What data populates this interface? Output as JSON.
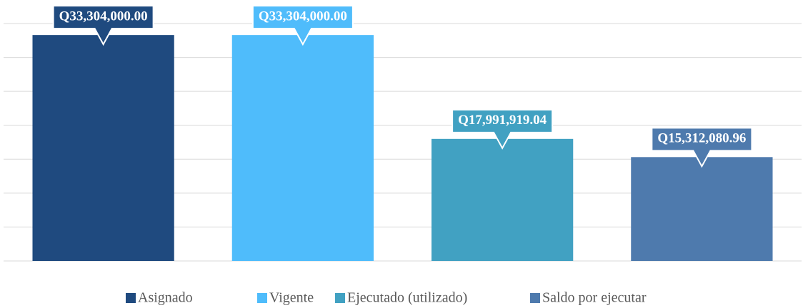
{
  "chart_data": {
    "type": "bar",
    "series": [
      {
        "name": "Asignado",
        "color": "#1f4a7f",
        "values": [
          33304000
        ],
        "value_labels": [
          "Q33,304,000.00"
        ]
      },
      {
        "name": "Vigente",
        "color": "#4fbcfb",
        "values": [
          33304000
        ],
        "value_labels": [
          "Q33,304,000.00"
        ]
      },
      {
        "name": "Ejecutado (utilizado)",
        "color": "#41a1c2",
        "values": [
          17991919.04
        ],
        "value_labels": [
          "Q17,991,919.04"
        ]
      },
      {
        "name": "Saldo por ejecutar",
        "color": "#4e7aad",
        "values": [
          15312080.96
        ],
        "value_labels": [
          "Q15,312,080.96"
        ]
      }
    ],
    "ylim": [
      0,
      35000000
    ],
    "yticks": [
      0,
      5000000,
      10000000,
      15000000,
      20000000,
      25000000,
      30000000,
      35000000
    ],
    "grid": true,
    "legend": "bottom"
  }
}
